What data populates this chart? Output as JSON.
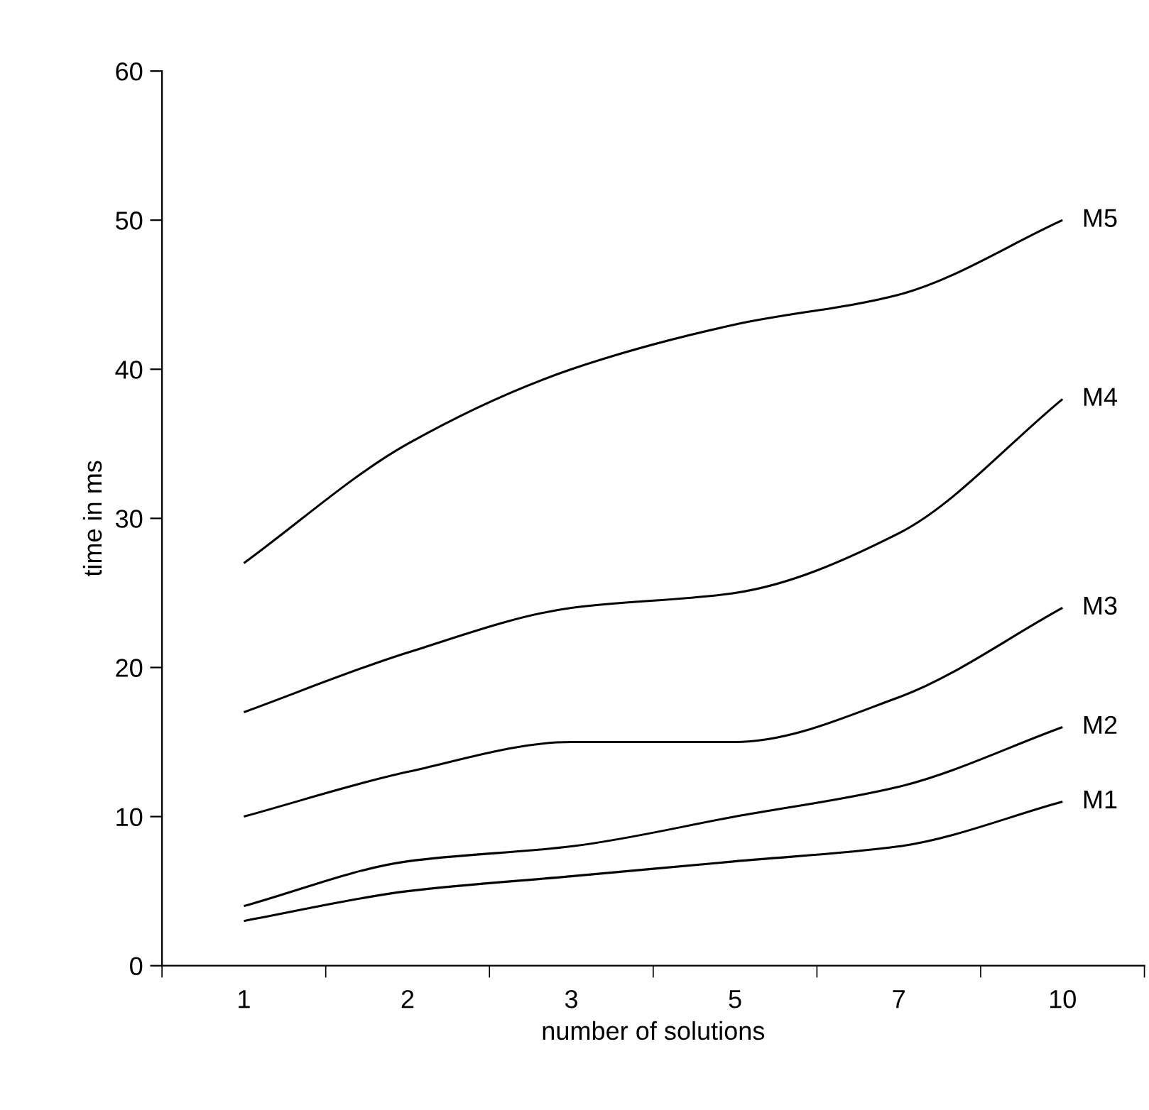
{
  "chart_data": {
    "type": "line",
    "xlabel": "number of solutions",
    "ylabel": "time in ms",
    "categories": [
      "1",
      "2",
      "3",
      "5",
      "7",
      "10"
    ],
    "series": [
      {
        "name": "M1",
        "color": "#000000",
        "values": [
          3,
          5,
          6,
          7,
          8,
          11
        ]
      },
      {
        "name": "M2",
        "color": "#000000",
        "values": [
          4,
          7,
          8,
          10,
          12,
          16
        ]
      },
      {
        "name": "M3",
        "color": "#000000",
        "values": [
          10,
          13,
          15,
          15,
          18,
          24
        ]
      },
      {
        "name": "M4",
        "color": "#000000",
        "values": [
          17,
          21,
          24,
          25,
          29,
          38
        ]
      },
      {
        "name": "M5",
        "color": "#000000",
        "values": [
          27,
          35,
          40,
          43,
          45,
          50
        ]
      }
    ],
    "ylim": [
      0,
      60
    ],
    "yticks": [
      0,
      10,
      20,
      30,
      40,
      50,
      60
    ],
    "grid": false,
    "legend": false,
    "marker": "none",
    "line_style": "solid"
  }
}
